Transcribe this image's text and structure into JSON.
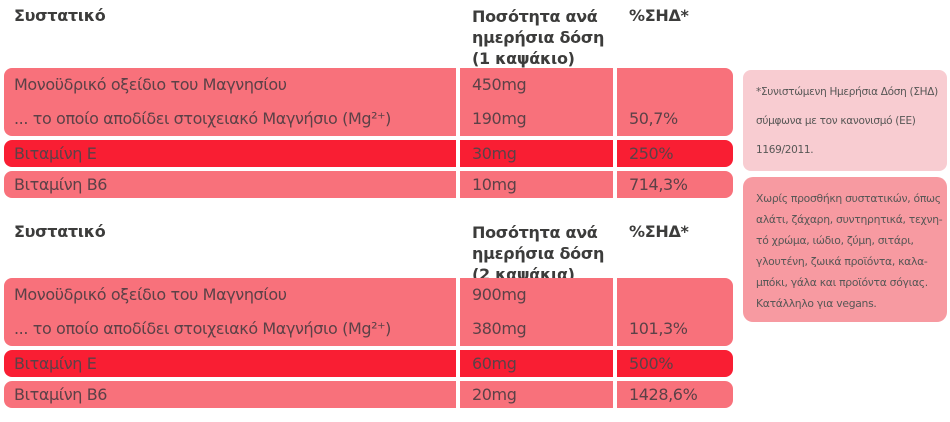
{
  "colors": {
    "background": "#ffffff",
    "row_light": "#f8717b",
    "row_highlight": "#f91e33",
    "note_light_bg": "#f8ccd1",
    "note_dark_bg": "#f79aa1",
    "header_text": "#3c3c3b",
    "row_text": "#5c4147",
    "note_text": "#575756"
  },
  "tables": [
    {
      "header": {
        "ingredient_label": "Συστατικό",
        "dose_label_lines": [
          "Ποσότητα ανά",
          "ημερήσια δόση",
          "(1 καψάκιο)"
        ],
        "rda_label": "%ΣΗΔ*"
      },
      "magnesium": {
        "lines": [
          {
            "name": "Μονοϋδρικό οξείδιο του Μαγνησίου",
            "amount": "450mg",
            "rda": ""
          },
          {
            "name": "... το οποίο αποδίδει στοιχειακό Μαγνήσιο (Mg²⁺)",
            "amount": "190mg",
            "rda": "50,7%"
          }
        ]
      },
      "rows": [
        {
          "name": "Βιταμίνη Ε",
          "amount": "30mg",
          "rda": "250%"
        },
        {
          "name": "Βιταμίνη Β6",
          "amount": "10mg",
          "rda": "714,3%"
        }
      ]
    },
    {
      "header": {
        "ingredient_label": "Συστατικό",
        "dose_label_lines": [
          "Ποσότητα ανά",
          "ημερήσια δόση",
          "(2 καψάκια)"
        ],
        "rda_label": "%ΣΗΔ*"
      },
      "magnesium": {
        "lines": [
          {
            "name": "Μονοϋδρικό οξείδιο του Μαγνησίου",
            "amount": "900mg",
            "rda": ""
          },
          {
            "name": "... το οποίο αποδίδει στοιχειακό Μαγνήσιο (Mg²⁺)",
            "amount": "380mg",
            "rda": "101,3%"
          }
        ]
      },
      "rows": [
        {
          "name": "Βιταμίνη Ε",
          "amount": "60mg",
          "rda": "500%"
        },
        {
          "name": "Βιταμίνη Β6",
          "amount": "20mg",
          "rda": "1428,6%"
        }
      ]
    }
  ],
  "notes": [
    {
      "lines": [
        "*Συνιστώμενη Ημερήσια Δόση (ΣΗΔ)",
        "σύμφωνα με τον κανονισμό (ΕΕ)",
        "1169/2011."
      ]
    },
    {
      "lines": [
        "Χωρίς προσθήκη συστατικών, όπως",
        "αλάτι, ζάχαρη, συντηρητικά, τεχνη-",
        "τό χρώμα, ιώδιο, ζύμη, σιτάρι,",
        "γλουτένη, ζωικά προϊόντα, καλα-",
        "μπόκι, γάλα και προϊόντα σόγιας.",
        "Κατάλληλο για vegans."
      ]
    }
  ]
}
